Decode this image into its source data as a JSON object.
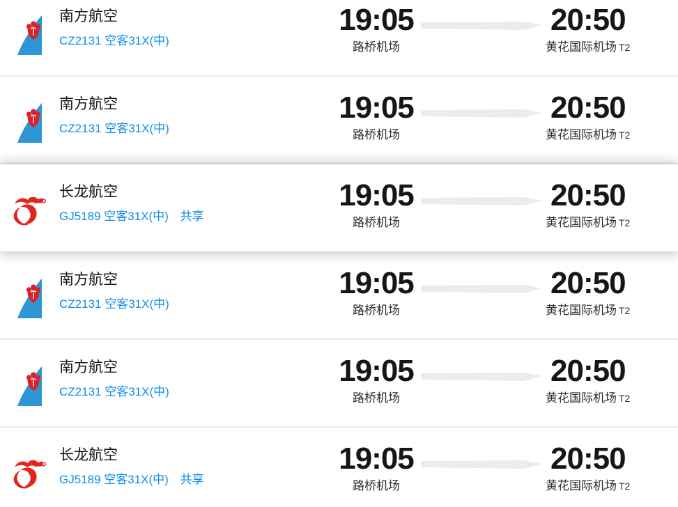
{
  "list_name": "flight-results",
  "colors": {
    "link_blue": "#0f8ee8",
    "separator": "#e8ebf3",
    "arrow_gray": "#ececec",
    "china_southern_blue": "#2e96d2",
    "china_southern_flower_red": "#d8232a",
    "loong_air_red": "#e0261f",
    "time_text": "#161616"
  },
  "icons": {
    "route_arrow": "right-arrow-icon",
    "china_southern": "china-southern-tail-logo",
    "loong_air": "loong-air-dragon-logo"
  },
  "flights": [
    {
      "airline": "南方航空",
      "logo": "china-southern",
      "flight_info": "CZ2131 空客31X(中)",
      "share_label": "",
      "dep_time": "19:05",
      "dep_airport": "路桥机场",
      "arr_time": "20:50",
      "arr_airport": "黄花国际机场",
      "arr_terminal": "T2",
      "highlighted": false
    },
    {
      "airline": "南方航空",
      "logo": "china-southern",
      "flight_info": "CZ2131 空客31X(中)",
      "share_label": "",
      "dep_time": "19:05",
      "dep_airport": "路桥机场",
      "arr_time": "20:50",
      "arr_airport": "黄花国际机场",
      "arr_terminal": "T2",
      "highlighted": false
    },
    {
      "airline": "长龙航空",
      "logo": "loong-air",
      "flight_info": "GJ5189 空客31X(中)",
      "share_label": "共享",
      "dep_time": "19:05",
      "dep_airport": "路桥机场",
      "arr_time": "20:50",
      "arr_airport": "黄花国际机场",
      "arr_terminal": "T2",
      "highlighted": true
    },
    {
      "airline": "南方航空",
      "logo": "china-southern",
      "flight_info": "CZ2131 空客31X(中)",
      "share_label": "",
      "dep_time": "19:05",
      "dep_airport": "路桥机场",
      "arr_time": "20:50",
      "arr_airport": "黄花国际机场",
      "arr_terminal": "T2",
      "highlighted": false
    },
    {
      "airline": "南方航空",
      "logo": "china-southern",
      "flight_info": "CZ2131 空客31X(中)",
      "share_label": "",
      "dep_time": "19:05",
      "dep_airport": "路桥机场",
      "arr_time": "20:50",
      "arr_airport": "黄花国际机场",
      "arr_terminal": "T2",
      "highlighted": false
    },
    {
      "airline": "长龙航空",
      "logo": "loong-air",
      "flight_info": "GJ5189 空客31X(中)",
      "share_label": "共享",
      "dep_time": "19:05",
      "dep_airport": "路桥机场",
      "arr_time": "20:50",
      "arr_airport": "黄花国际机场",
      "arr_terminal": "T2",
      "highlighted": false
    }
  ]
}
